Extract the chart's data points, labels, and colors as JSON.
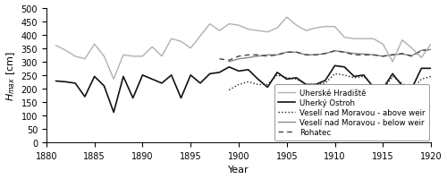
{
  "years": [
    1881,
    1882,
    1883,
    1884,
    1885,
    1886,
    1887,
    1888,
    1889,
    1890,
    1891,
    1892,
    1893,
    1894,
    1895,
    1896,
    1897,
    1898,
    1899,
    1900,
    1901,
    1902,
    1903,
    1904,
    1905,
    1906,
    1907,
    1908,
    1909,
    1910,
    1911,
    1912,
    1913,
    1914,
    1915,
    1916,
    1917,
    1918,
    1919,
    1920
  ],
  "uherske_hradiste": [
    360,
    342,
    320,
    310,
    365,
    320,
    235,
    325,
    320,
    320,
    355,
    320,
    385,
    375,
    350,
    395,
    440,
    415,
    440,
    435,
    420,
    415,
    410,
    425,
    465,
    435,
    415,
    425,
    430,
    430,
    390,
    385,
    385,
    385,
    365,
    300,
    380,
    350,
    315,
    365
  ],
  "uhersky_ostroh": [
    228,
    225,
    220,
    170,
    245,
    210,
    112,
    245,
    165,
    250,
    235,
    220,
    250,
    165,
    250,
    220,
    255,
    260,
    280,
    265,
    270,
    235,
    205,
    260,
    235,
    240,
    215,
    215,
    230,
    285,
    280,
    245,
    250,
    205,
    200,
    255,
    210,
    200,
    275,
    275
  ],
  "veseli_above": [
    null,
    null,
    null,
    null,
    null,
    null,
    null,
    null,
    null,
    null,
    null,
    null,
    null,
    null,
    null,
    null,
    null,
    null,
    195,
    215,
    225,
    215,
    215,
    250,
    240,
    235,
    215,
    215,
    220,
    255,
    250,
    240,
    245,
    210,
    195,
    245,
    220,
    195,
    235,
    245
  ],
  "veseli_below": [
    null,
    null,
    null,
    null,
    null,
    null,
    null,
    null,
    null,
    null,
    null,
    null,
    null,
    null,
    null,
    null,
    null,
    null,
    300,
    310,
    315,
    320,
    325,
    325,
    335,
    335,
    325,
    325,
    330,
    340,
    335,
    330,
    328,
    325,
    320,
    325,
    328,
    322,
    342,
    345
  ],
  "rohatec": [
    null,
    null,
    null,
    null,
    null,
    null,
    null,
    null,
    null,
    null,
    null,
    null,
    null,
    null,
    null,
    null,
    null,
    310,
    305,
    320,
    325,
    325,
    320,
    325,
    335,
    335,
    325,
    325,
    330,
    340,
    335,
    325,
    325,
    325,
    320,
    325,
    330,
    320,
    340,
    345
  ],
  "xlim": [
    1880,
    1920
  ],
  "ylim": [
    0,
    500
  ],
  "yticks": [
    0,
    50,
    100,
    150,
    200,
    250,
    300,
    350,
    400,
    450,
    500
  ],
  "xticks": [
    1880,
    1885,
    1890,
    1895,
    1900,
    1905,
    1910,
    1915,
    1920
  ],
  "xlabel": "Year",
  "ylabel": "H_max [cm]",
  "color_uh": "#b0b0b0",
  "color_uo": "#111111",
  "color_va": "#222222",
  "color_vb": "#888888",
  "color_ro": "#444444",
  "legend_labels": [
    "Uherské Hradiště",
    "Uherký Ostroh",
    "Veselí nad Moravou - above weir",
    "Veselí nad Moravou - below weir",
    "Rohatec"
  ]
}
